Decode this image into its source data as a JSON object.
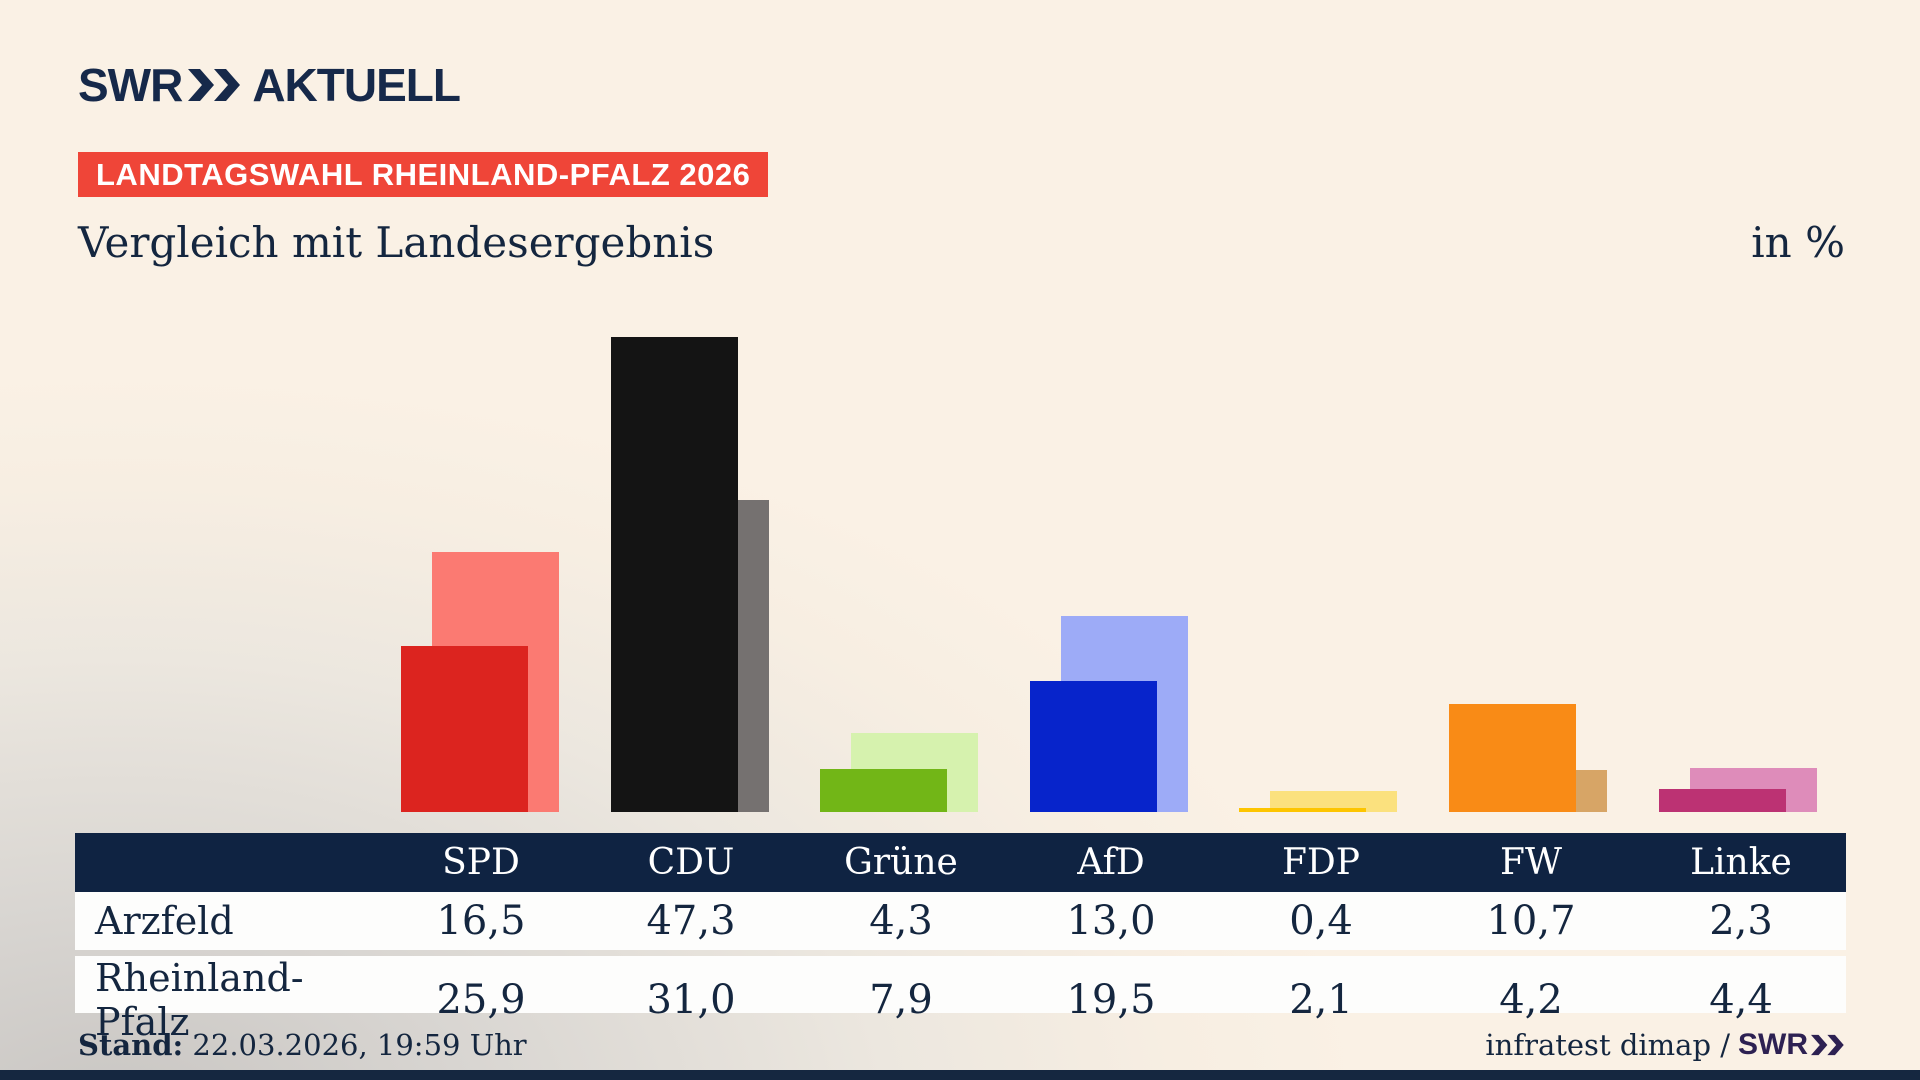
{
  "header": {
    "logo_swr": "SWR",
    "logo_aktuell": "AKTUELL",
    "banner": "LANDTAGSWAHL RHEINLAND-PFALZ 2026",
    "subtitle": "Vergleich mit Landesergebnis",
    "unit_label": "in %"
  },
  "chart_data": {
    "type": "bar",
    "title": "Vergleich mit Landesergebnis",
    "unit": "%",
    "categories": [
      "SPD",
      "CDU",
      "Grüne",
      "AfD",
      "FDP",
      "FW",
      "Linke"
    ],
    "series": [
      {
        "name": "Arzfeld",
        "values": [
          16.5,
          47.3,
          4.3,
          13.0,
          0.4,
          10.7,
          2.3
        ],
        "colors": [
          "#dc241f",
          "#141414",
          "#72b617",
          "#0724cb",
          "#fdc500",
          "#f98b16",
          "#bc3273"
        ]
      },
      {
        "name": "Rheinland-Pfalz",
        "values": [
          25.9,
          31.0,
          7.9,
          19.5,
          2.1,
          4.2,
          4.4
        ],
        "colors": [
          "#fb7a72",
          "#757170",
          "#d6f2ae",
          "#9dabf7",
          "#fbe17e",
          "#d7a566",
          "#de8cba"
        ]
      }
    ],
    "legend_position": "none",
    "grid": false,
    "value_labels_shown_in_table": true
  },
  "table": {
    "columns": [
      "SPD",
      "CDU",
      "Grüne",
      "AfD",
      "FDP",
      "FW",
      "Linke"
    ],
    "row_labels": [
      "Arzfeld",
      "Rheinland-Pfalz"
    ],
    "rows": [
      [
        "16,5",
        "47,3",
        "4,3",
        "13,0",
        "0,4",
        "10,7",
        "2,3"
      ],
      [
        "25,9",
        "31,0",
        "7,9",
        "19,5",
        "2,1",
        "4,2",
        "4,4"
      ]
    ]
  },
  "footer": {
    "stand_label": "Stand:",
    "stand_value": "22.03.2026, 19:59 Uhr",
    "source_text": "infratest dimap /",
    "source_logo": "SWR"
  },
  "colors": {
    "navy_text": "#14263f",
    "table_header_bg": "#0f2342",
    "banner_bg": "#ef4538",
    "logo_navy": "#16294a",
    "footer_logo_violet": "#2d2152",
    "background_cream": "#faf1e5",
    "background_gray": "#c8c5c2"
  }
}
